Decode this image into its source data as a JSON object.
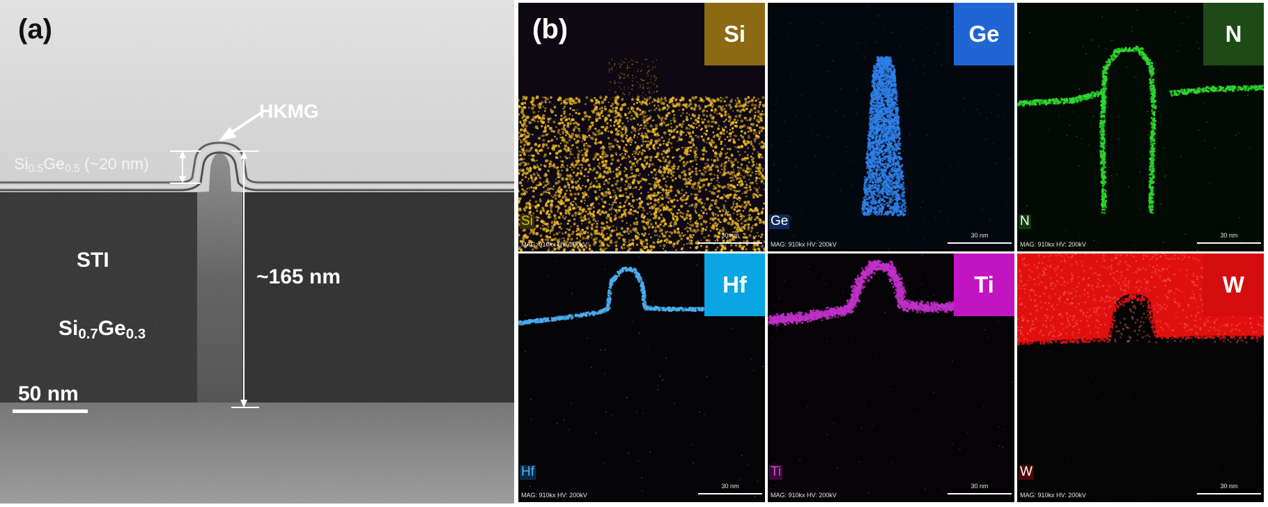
{
  "panel_a": {
    "label": "(a)",
    "hkmg": "HKMG",
    "sige_top": {
      "el1": "Si",
      "sub1": "0.5",
      "el2": "Ge",
      "sub2": "0.5",
      "suffix": " (~20 nm)"
    },
    "sti": "STI",
    "sige_bottom": {
      "el1": "Si",
      "sub1": "0.7",
      "el2": "Ge",
      "sub2": "0.3"
    },
    "height": "~165 nm",
    "scale_bar": "50 nm"
  },
  "panel_b": {
    "label": "(b)",
    "tiles": [
      {
        "element": "Si",
        "color": "#e8b422",
        "badge_color": "#8b6a13",
        "corner_text_color": "#e0c020",
        "corner_bg": "#3a3000",
        "mag": "MAG: 910kx  HV: 200kV",
        "scale": "30 nm"
      },
      {
        "element": "Ge",
        "color": "#2f7fe8",
        "badge_color": "#1f66d2",
        "corner_text_color": "#ffffff",
        "corner_bg": "#0e2a5a",
        "mag": "MAG: 910kx  HV: 200kV",
        "scale": "30 nm"
      },
      {
        "element": "N",
        "color": "#2ed82e",
        "badge_color": "#1e4a15",
        "corner_text_color": "#ffffff",
        "corner_bg": "#0f3a0f",
        "mag": "MAG: 910kx  HV: 200kV",
        "scale": "30 nm"
      },
      {
        "element": "Hf",
        "color": "#4aaef2",
        "badge_color": "#0aa6e4",
        "corner_text_color": "#4ab6ff",
        "corner_bg": "#0a2a45",
        "mag": "MAG: 910kx  HV: 200kV",
        "scale": "30 nm"
      },
      {
        "element": "Ti",
        "color": "#c030c8",
        "badge_color": "#c215c2",
        "corner_text_color": "#e040e0",
        "corner_bg": "#3a0a3a",
        "mag": "MAG: 910kx  HV: 200kV",
        "scale": "30 nm"
      },
      {
        "element": "W",
        "color": "#e01010",
        "badge_color": "#d40e0e",
        "corner_text_color": "#ffffff",
        "corner_bg": "#4a0808",
        "mag": "MAG: 910kx  HV: 200kV",
        "scale": "30 nm"
      }
    ]
  }
}
